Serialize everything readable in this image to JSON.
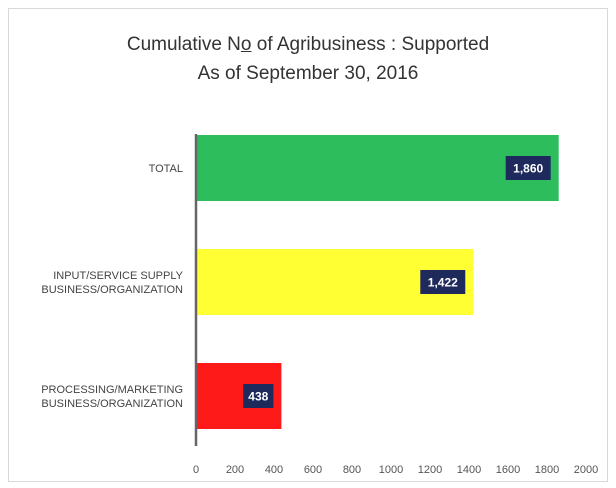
{
  "title_part1": "Cumulative N",
  "title_no": "o",
  "title_part2": " of Agribusiness : Supported",
  "subtitle": "As of  September 30, 2016",
  "colors": {
    "total": "#2ebd5c",
    "input": "#ffff33",
    "processing": "#ff1a1a",
    "label_bg": "#1f2a5c",
    "axis": "#666666"
  },
  "chart_data": {
    "type": "bar",
    "orientation": "horizontal",
    "title": "Cumulative No of Agribusiness : Supported",
    "subtitle": "As of  September 30, 2016",
    "categories": [
      [
        "TOTAL"
      ],
      [
        "INPUT/SERVICE SUPPLY",
        "BUSINESS/ORGANIZATION"
      ],
      [
        "PROCESSING/MARKETING",
        "BUSINESS/ORGANIZATION"
      ]
    ],
    "values": [
      1860,
      1422,
      438
    ],
    "data_labels": [
      "1,860",
      "1,422",
      "438"
    ],
    "xlim": [
      0,
      2000
    ],
    "xticks": [
      "0",
      "200",
      "400",
      "600",
      "800",
      "1000",
      "1200",
      "1400",
      "1600",
      "1800",
      "2000"
    ],
    "grid": false,
    "legend": "none"
  }
}
